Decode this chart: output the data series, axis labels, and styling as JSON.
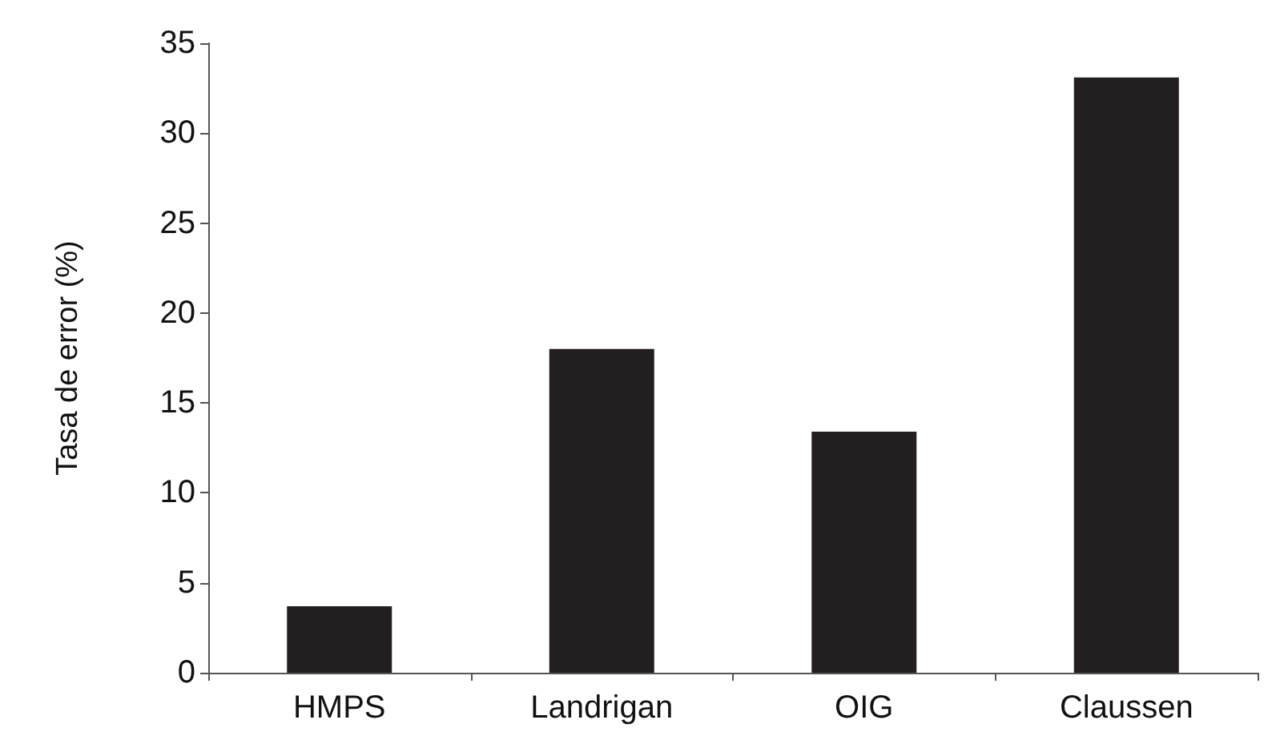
{
  "chart_data": {
    "type": "bar",
    "ylabel": "Tasa de error (%)",
    "categories": [
      "HMPS",
      "Landrigan",
      "OIG",
      "Claussen"
    ],
    "values": [
      3.7,
      18.0,
      13.4,
      33.1
    ],
    "color": "#231f20",
    "ylim": [
      0,
      35
    ],
    "yticks": [
      0,
      5,
      10,
      15,
      20,
      25,
      30,
      35
    ],
    "grid": false
  }
}
